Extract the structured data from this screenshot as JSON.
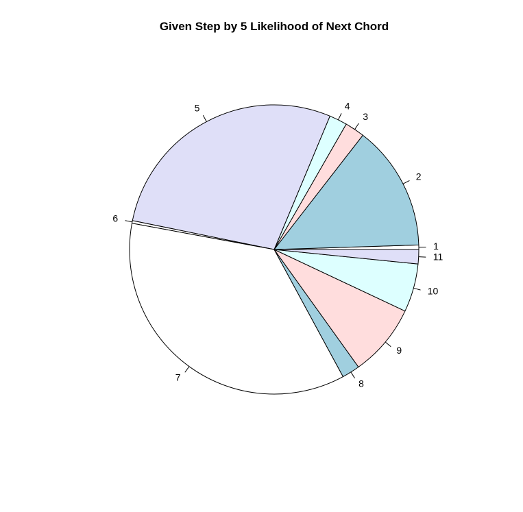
{
  "chart_data": {
    "type": "pie",
    "title": "Given Step by 5 Likelihood of Next Chord",
    "direction": "counterclockwise",
    "start_angle_deg": 0,
    "slices": [
      {
        "label": "1",
        "value": 0.5,
        "color": "#FFFFFF"
      },
      {
        "label": "2",
        "value": 14.0,
        "color": "#A0CFDF"
      },
      {
        "label": "3",
        "value": 2.2,
        "color": "#FFDDDD"
      },
      {
        "label": "4",
        "value": 2.0,
        "color": "#DDFFFF"
      },
      {
        "label": "5",
        "value": 28.1,
        "color": "#DFDFF8"
      },
      {
        "label": "6",
        "value": 0.3,
        "color": "#FFFFFF"
      },
      {
        "label": "7",
        "value": 35.8,
        "color": "#FFFFFF"
      },
      {
        "label": "8",
        "value": 2.0,
        "color": "#A0CFDF"
      },
      {
        "label": "9",
        "value": 8.1,
        "color": "#FFDDDD"
      },
      {
        "label": "10",
        "value": 5.4,
        "color": "#DDFFFF"
      },
      {
        "label": "11",
        "value": 1.6,
        "color": "#DFDFF8"
      }
    ]
  }
}
